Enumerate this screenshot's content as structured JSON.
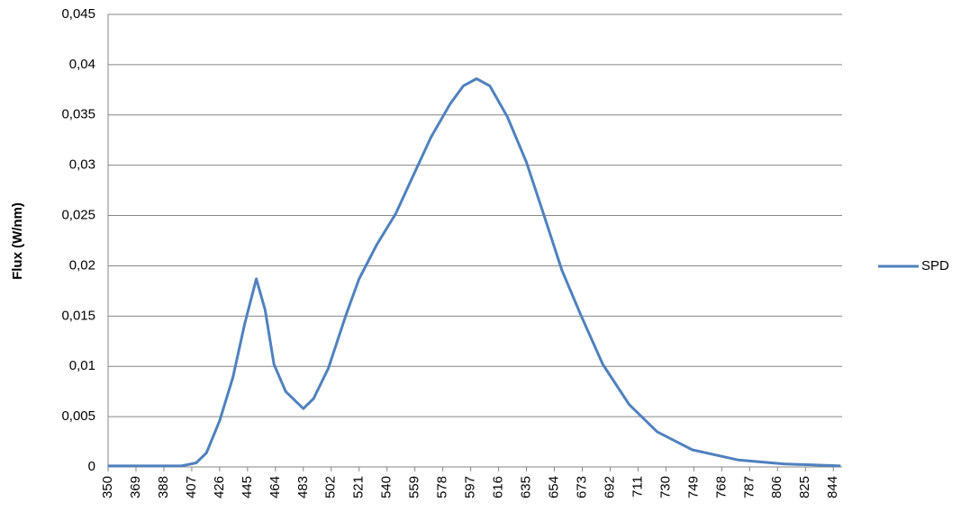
{
  "chart_data": {
    "type": "line",
    "y_label": "Flux (W/nm)",
    "x": [
      350,
      380,
      400,
      410,
      417,
      426,
      435,
      443,
      451,
      457,
      463,
      471,
      483,
      490,
      500,
      512,
      521,
      533,
      546,
      558,
      570,
      583,
      592,
      601,
      610,
      622,
      635,
      647,
      659,
      672,
      687,
      705,
      724,
      748,
      779,
      810,
      849
    ],
    "series": [
      {
        "name": "SPD",
        "color": "#4f81bd",
        "values": [
          0.0001,
          0.0001,
          0.0001,
          0.0004,
          0.0014,
          0.0046,
          0.0089,
          0.0142,
          0.0187,
          0.0156,
          0.0102,
          0.0075,
          0.0058,
          0.0068,
          0.0098,
          0.0151,
          0.0187,
          0.0221,
          0.0252,
          0.029,
          0.0328,
          0.0361,
          0.0379,
          0.0386,
          0.0379,
          0.0348,
          0.0303,
          0.025,
          0.0196,
          0.0151,
          0.0102,
          0.0062,
          0.0035,
          0.0017,
          0.0007,
          0.0003,
          0.0001
        ]
      }
    ],
    "xlim": [
      350,
      850
    ],
    "xticks": [
      350,
      369,
      388,
      407,
      426,
      445,
      464,
      483,
      502,
      521,
      540,
      559,
      578,
      597,
      616,
      635,
      654,
      673,
      692,
      711,
      730,
      749,
      768,
      787,
      806,
      825,
      844
    ],
    "ylim": [
      0,
      0.045
    ],
    "yticks": [
      0,
      {
        "value": 0.005,
        "label": "0,005"
      },
      {
        "value": 0.01,
        "label": "0,01"
      },
      {
        "value": 0.015,
        "label": "0,015"
      },
      {
        "value": 0.02,
        "label": "0,02"
      },
      {
        "value": 0.025,
        "label": "0,025"
      },
      {
        "value": 0.03,
        "label": "0,03"
      },
      {
        "value": 0.035,
        "label": "0,035"
      },
      {
        "value": 0.04,
        "label": "0,04"
      },
      {
        "value": 0.045,
        "label": "0,045"
      }
    ],
    "grid": true,
    "legend": "right"
  }
}
